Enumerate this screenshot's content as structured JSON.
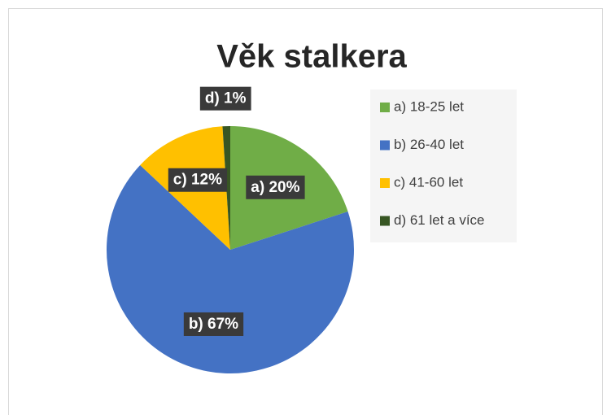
{
  "chart_data": {
    "type": "pie",
    "title": "Věk stalkera",
    "categories": [
      "a) 18-25 let",
      "b) 26-40 let",
      "c) 41-60 let",
      "d) 61 let a více"
    ],
    "values": [
      20,
      67,
      12,
      1
    ],
    "value_labels": [
      "a) 20%",
      "b) 67%",
      "c) 12%",
      "d) 1%"
    ],
    "colors": [
      "#70ad47",
      "#4472c4",
      "#ffc000",
      "#375623"
    ],
    "legend": "right"
  }
}
